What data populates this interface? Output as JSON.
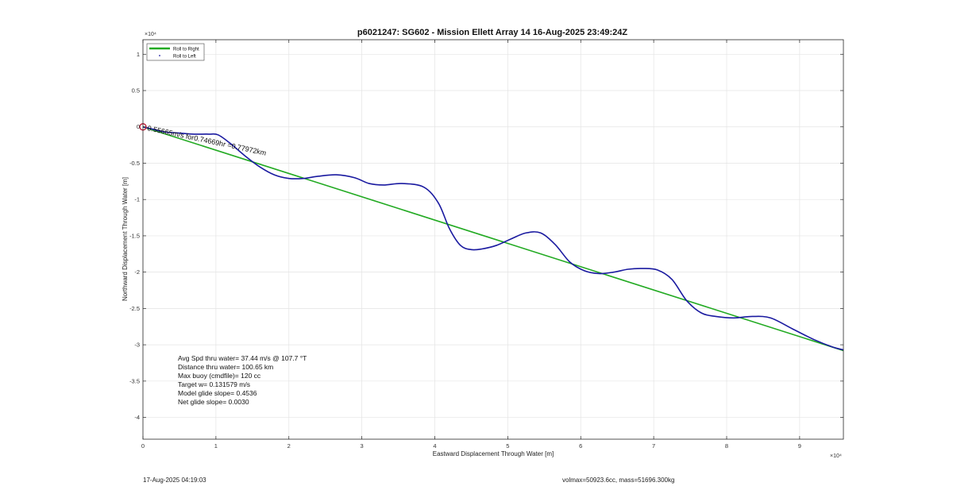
{
  "chart_data": {
    "type": "line",
    "title": "p6021247: SG602 - Mission Ellett Array 14 16-Aug-2025 23:49:24Z",
    "xlabel": "Eastward Displacement Through Water [m]",
    "ylabel": "Northward Displacement Through Water [m]",
    "x_exponent": "×10⁴",
    "y_exponent": "×10⁴",
    "xlim": [
      0,
      96000
    ],
    "ylim": [
      -43000,
      12000
    ],
    "xticks": [
      0,
      10000,
      20000,
      30000,
      40000,
      50000,
      60000,
      70000,
      80000,
      90000
    ],
    "xtick_labels": [
      "0",
      "1",
      "2",
      "3",
      "4",
      "5",
      "6",
      "7",
      "8",
      "9"
    ],
    "yticks": [
      10000,
      5000,
      0,
      -5000,
      -10000,
      -15000,
      -20000,
      -25000,
      -30000,
      -35000,
      -40000
    ],
    "ytick_labels": [
      "1",
      "0.5",
      "0",
      "-0.5",
      "-1",
      "-1.5",
      "-2",
      "-2.5",
      "-3",
      "-3.5",
      "-4"
    ],
    "grid": true,
    "legend_position": "top-left",
    "legend": [
      {
        "label": "Roll to Right",
        "color": "#22aa22",
        "marker": "line"
      },
      {
        "label": "Roll to Left",
        "color": "#1a1aa0",
        "marker": "dot"
      }
    ],
    "series": [
      {
        "name": "Roll to Right",
        "color": "#22aa22",
        "x": [
          0,
          96000
        ],
        "y": [
          0,
          -30800
        ]
      },
      {
        "name": "Roll to Left",
        "color": "#1a1aa0",
        "x": [
          0,
          1500,
          3000,
          5000,
          7000,
          9000,
          10300,
          12000,
          14000,
          16000,
          18000,
          20000,
          22000,
          24000,
          26500,
          29000,
          31000,
          33000,
          35500,
          38500,
          40500,
          42000,
          43500,
          45000,
          46500,
          48500,
          50500,
          52500,
          54500,
          56500,
          58500,
          60500,
          62500,
          64500,
          66500,
          68500,
          70500,
          72500,
          74500,
          76500,
          78500,
          81000,
          83500,
          86000,
          89000,
          92000,
          94500,
          96000
        ],
        "y": [
          0,
          -350,
          -700,
          -850,
          -1000,
          -1000,
          -1100,
          -2300,
          -4000,
          -5500,
          -6600,
          -7100,
          -7100,
          -6800,
          -6600,
          -7000,
          -7800,
          -8000,
          -7800,
          -8300,
          -10500,
          -14000,
          -16300,
          -16900,
          -16800,
          -16300,
          -15400,
          -14600,
          -14600,
          -16200,
          -18600,
          -19800,
          -20200,
          -20000,
          -19600,
          -19500,
          -19700,
          -21000,
          -23900,
          -25600,
          -26100,
          -26300,
          -26100,
          -26300,
          -27800,
          -29300,
          -30300,
          -30700
        ]
      }
    ],
    "start_marker": {
      "x": 0,
      "y": 0,
      "color": "#c0203a"
    },
    "track_annotation": "0.55665m/s for0.74669hr =0.77972km",
    "stats": [
      "Avg Spd thru water= 37.44 m/s @ 107.7 °T",
      "Distance thru water= 100.65 km",
      "Max buoy (cmdfile)= 120 cc",
      "Target w= 0.131579 m/s",
      "Model glide slope= 0.4536",
      "Net glide slope= 0.0030"
    ]
  },
  "footer": {
    "date": "17-Aug-2025 04:19:03",
    "vol": "volmax=50923.6cc, mass=51696.300kg"
  }
}
